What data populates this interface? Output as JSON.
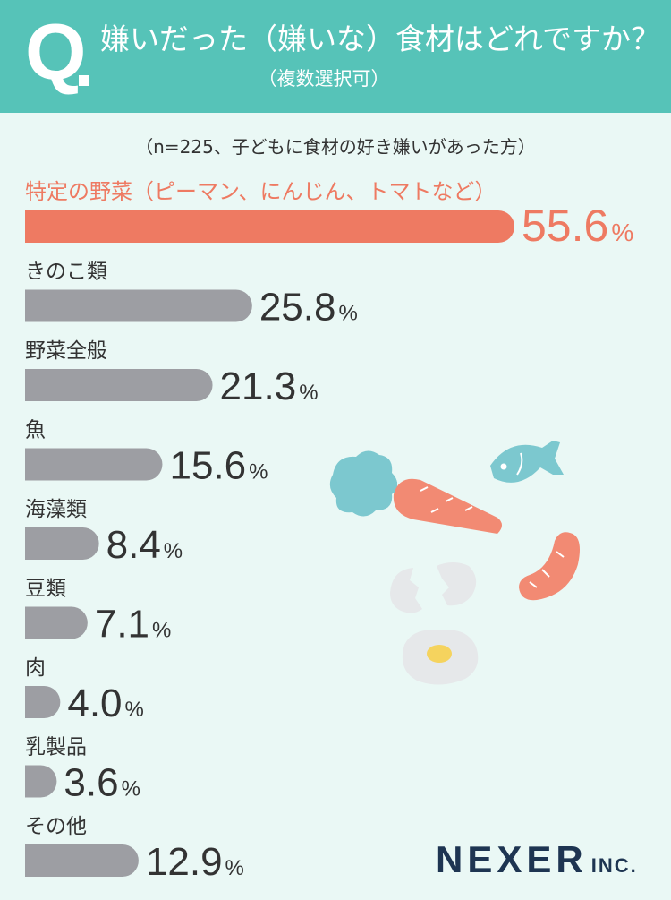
{
  "header": {
    "q": "Q",
    "title": "嫌いだった（嫌いな）食材はどれですか？",
    "subtitle": "（複数選択可）"
  },
  "note": "（n=225、子どもに食材の好き嫌いがあった方）",
  "logo": {
    "name": "NEXER",
    "suffix": "INC."
  },
  "colors": {
    "header": "#56c3b8",
    "background": "#eaf8f5",
    "highlight": "#ee7a62",
    "bar": "#9d9ea3",
    "text": "#333333"
  },
  "chart_data": {
    "type": "bar",
    "orientation": "horizontal",
    "unit": "%",
    "categories": [
      "特定の野菜（ピーマン、にんじん、トマトなど）",
      "きのこ類",
      "野菜全般",
      "魚",
      "海藻類",
      "豆類",
      "肉",
      "乳製品",
      "その他"
    ],
    "values": [
      55.6,
      25.8,
      21.3,
      15.6,
      8.4,
      7.1,
      4.0,
      3.6,
      12.9
    ],
    "value_labels": [
      "55.6",
      "25.8",
      "21.3",
      "15.6",
      "8.4",
      "7.1",
      "4.0",
      "3.6",
      "12.9"
    ],
    "highlight_index": 0,
    "grid": false,
    "legend": "none"
  }
}
